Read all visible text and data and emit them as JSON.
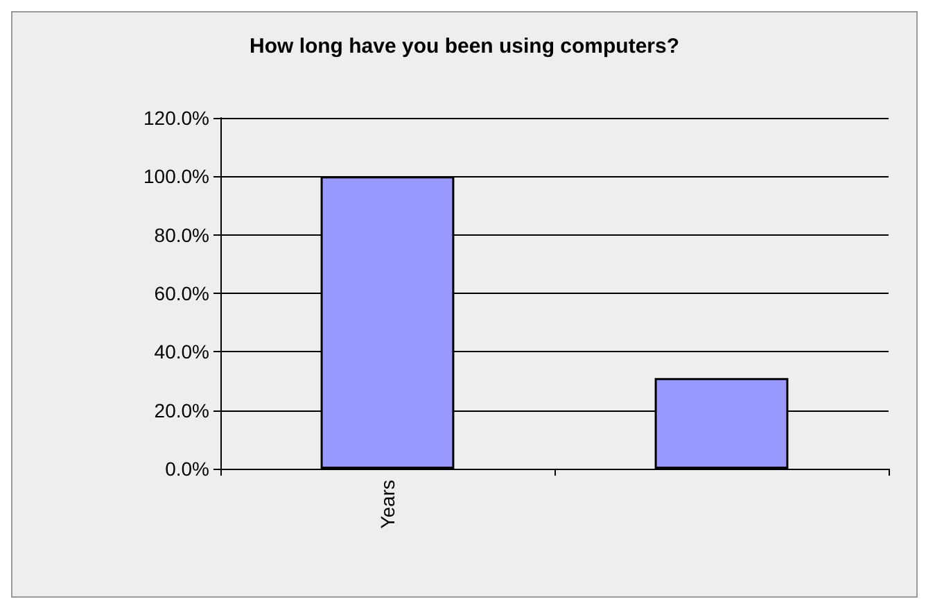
{
  "chart_data": {
    "type": "bar",
    "title": "How long have you been using computers?",
    "categories": [
      "Years",
      null
    ],
    "values": [
      100,
      31
    ],
    "color": "#9999ff",
    "ylim": [
      0,
      120
    ],
    "yticks": [
      {
        "value": 0,
        "label": "0.0%"
      },
      {
        "value": 20,
        "label": "20.0%"
      },
      {
        "value": 40,
        "label": "40.0%"
      },
      {
        "value": 60,
        "label": "60.0%"
      },
      {
        "value": 80,
        "label": "80.0%"
      },
      {
        "value": 100,
        "label": "100.0%"
      },
      {
        "value": 120,
        "label": "120.0%"
      }
    ],
    "grid": "y"
  }
}
